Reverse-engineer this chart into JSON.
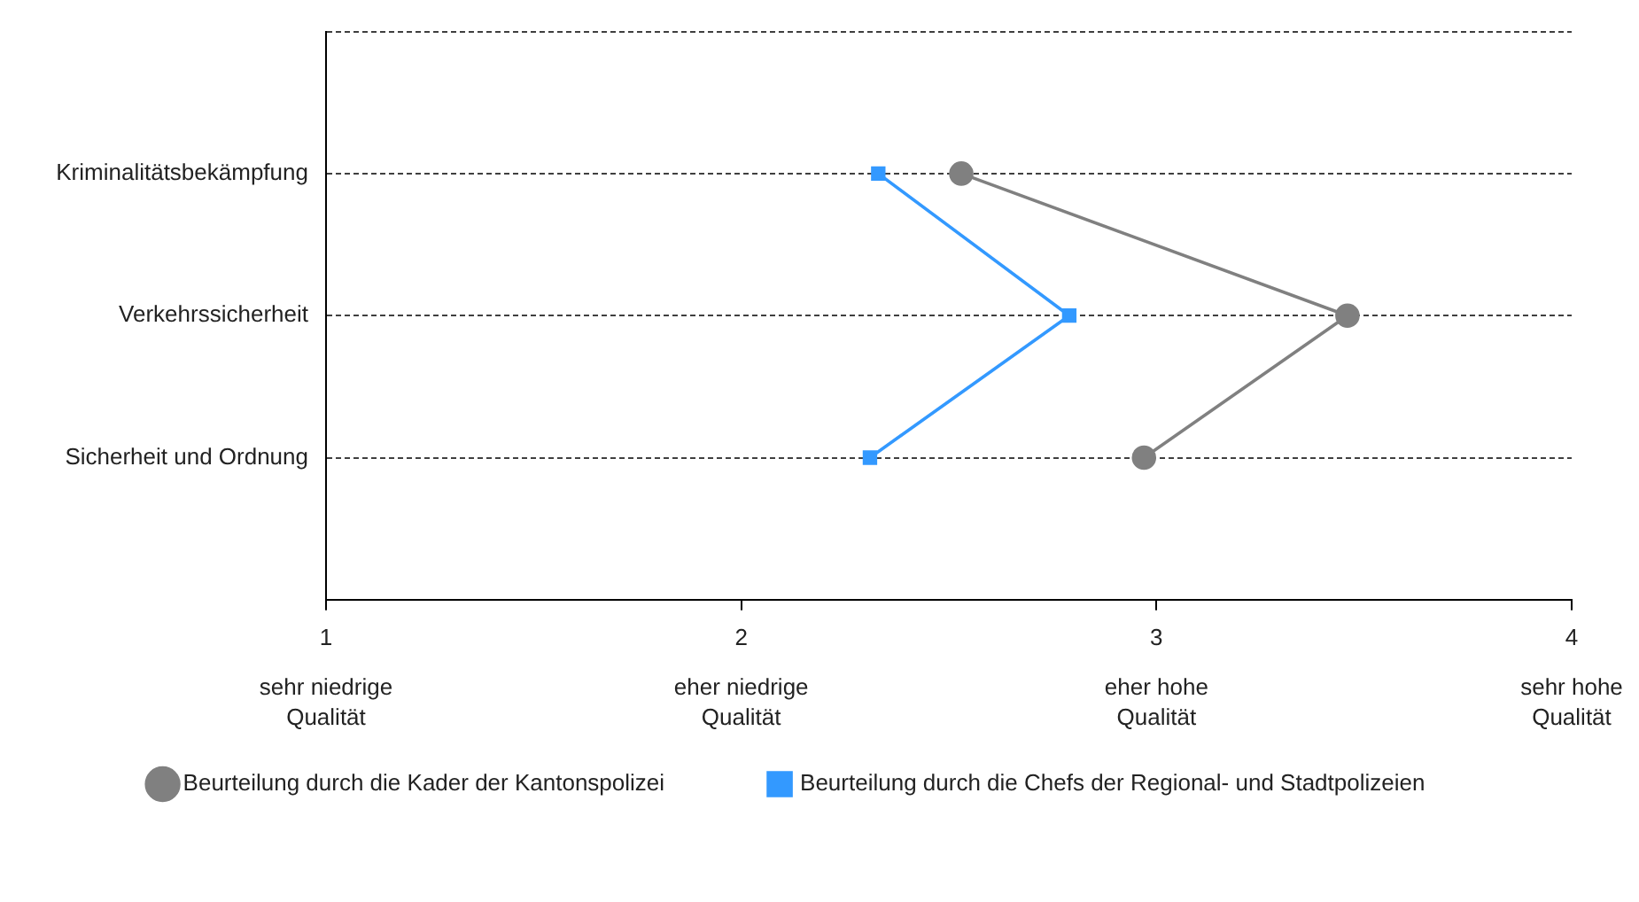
{
  "chart_data": {
    "type": "line",
    "orientation": "horizontal",
    "categories": [
      null,
      "Kriminalitätsbekämpfung",
      "Verkehrssicherheit",
      "Sicherheit und Ordnung",
      null
    ],
    "series": [
      {
        "name": "Beurteilung durch die Kader der Kantonspolizei",
        "color": "#808080",
        "marker": "circle",
        "values": [
          null,
          2.53,
          3.46,
          2.97,
          null
        ]
      },
      {
        "name": "Beurteilung durch die Chefs der Regional- und Stadtpolizeien",
        "color": "#3399ff",
        "marker": "square",
        "values": [
          null,
          2.33,
          2.79,
          2.31,
          null
        ]
      }
    ],
    "xlim": [
      1,
      4
    ],
    "xticks": [
      1,
      2,
      3,
      4
    ],
    "annotations": [
      "sehr niedrige\nQualität",
      "eher niedrige\nQualität",
      "eher hohe\nQualität",
      "sehr hohe\nQualität"
    ],
    "grid": "y",
    "line_style": "solid",
    "legend": "bottom"
  }
}
